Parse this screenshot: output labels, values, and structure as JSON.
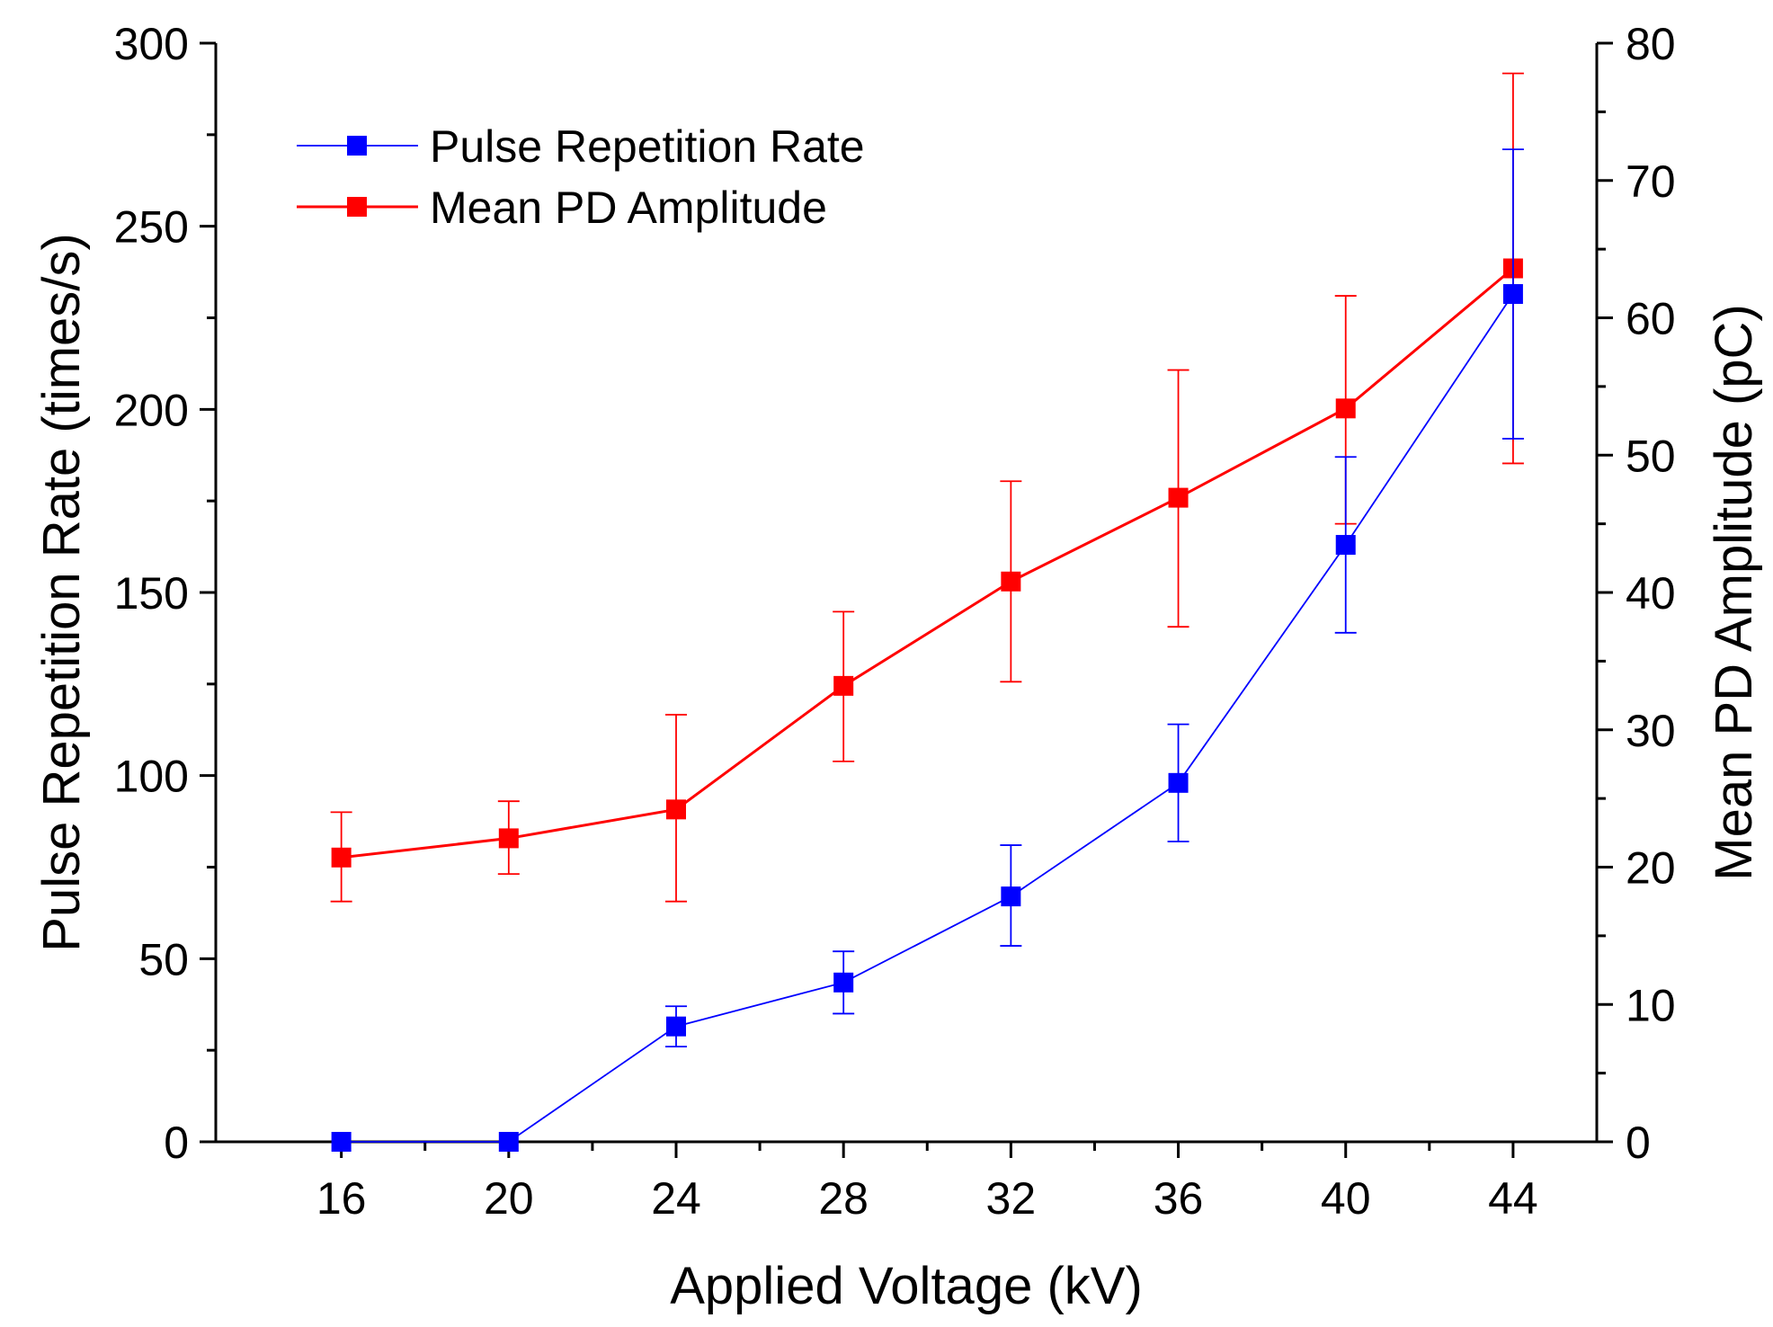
{
  "chart_data": {
    "type": "line",
    "xlabel": "Applied Voltage (kV)",
    "ylabel": "Pulse Repetition Rate (times/s)",
    "y2label": "Mean PD Amplitude (pC)",
    "xlim": [
      13,
      46
    ],
    "ylim": [
      0,
      300
    ],
    "y2lim": [
      0,
      80
    ],
    "x_ticks": [
      16,
      20,
      24,
      28,
      32,
      36,
      40,
      44
    ],
    "y_ticks": [
      0,
      50,
      100,
      150,
      200,
      250,
      300
    ],
    "y2_ticks": [
      0,
      10,
      20,
      30,
      40,
      50,
      60,
      70,
      80
    ],
    "legend_position": "top-left",
    "series": [
      {
        "name": "Pulse Repetition Rate",
        "axis": "left",
        "color": "#0000ff",
        "x": [
          16,
          20,
          24,
          28,
          32,
          36,
          40,
          44
        ],
        "values": [
          0,
          0,
          31.5,
          43.5,
          67,
          98,
          163,
          231.5
        ],
        "err_low": [
          0,
          0,
          26,
          35,
          53.5,
          82,
          139,
          192
        ],
        "err_high": [
          0,
          0,
          37,
          52,
          81,
          114,
          187,
          271
        ]
      },
      {
        "name": "Mean PD Amplitude",
        "axis": "right",
        "color": "#ff0000",
        "x": [
          16,
          20,
          24,
          28,
          32,
          36,
          40,
          44
        ],
        "values": [
          20.7,
          22.1,
          24.2,
          33.2,
          40.8,
          46.9,
          53.4,
          63.6
        ],
        "err_low": [
          17.5,
          19.5,
          17.5,
          27.7,
          33.5,
          37.5,
          45,
          49.4
        ],
        "err_high": [
          24,
          24.8,
          31.1,
          38.6,
          48.1,
          56.2,
          61.6,
          77.8
        ]
      }
    ]
  }
}
